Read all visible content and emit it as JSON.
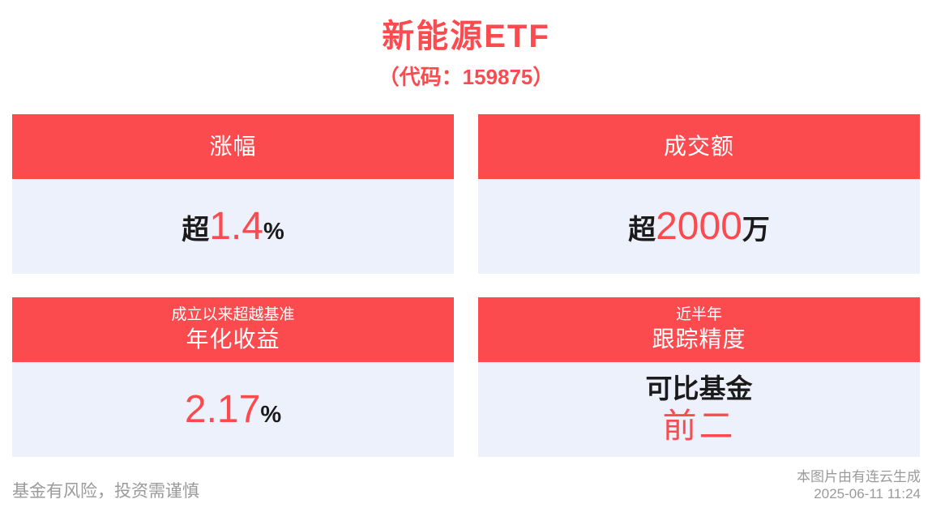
{
  "header": {
    "title": "新能源ETF",
    "subtitle": "（代码：159875）"
  },
  "cards": [
    {
      "title": "涨幅",
      "prefix": "超",
      "number": "1.4",
      "suffix": "%"
    },
    {
      "title": "成交额",
      "prefix": "超",
      "number": "2000",
      "suffix": "万"
    },
    {
      "subtitle": "成立以来超越基准",
      "title": "年化收益",
      "number": "2.17",
      "suffix": "%"
    },
    {
      "subtitle": "近半年",
      "title": "跟踪精度",
      "line1": "可比基金",
      "line2": "前二"
    }
  ],
  "footer": {
    "disclaimer": "基金有风险，投资需谨慎",
    "credit_line1": "本图片由有连云生成",
    "credit_line2": "2025-06-11 11:24"
  },
  "colors": {
    "accent": "#FB4B4F",
    "panel_bg": "#EDF1FC",
    "text_dark": "#1B1B1B",
    "text_muted": "#9A9A9A"
  },
  "chart_data": {
    "type": "table",
    "title": "新能源ETF（代码：159875）",
    "metrics": [
      {
        "label": "涨幅",
        "value": "超1.4%"
      },
      {
        "label": "成交额",
        "value": "超2000万"
      },
      {
        "label": "成立以来超越基准 年化收益",
        "value": "2.17%"
      },
      {
        "label": "近半年 跟踪精度",
        "value": "可比基金 前二"
      }
    ]
  }
}
